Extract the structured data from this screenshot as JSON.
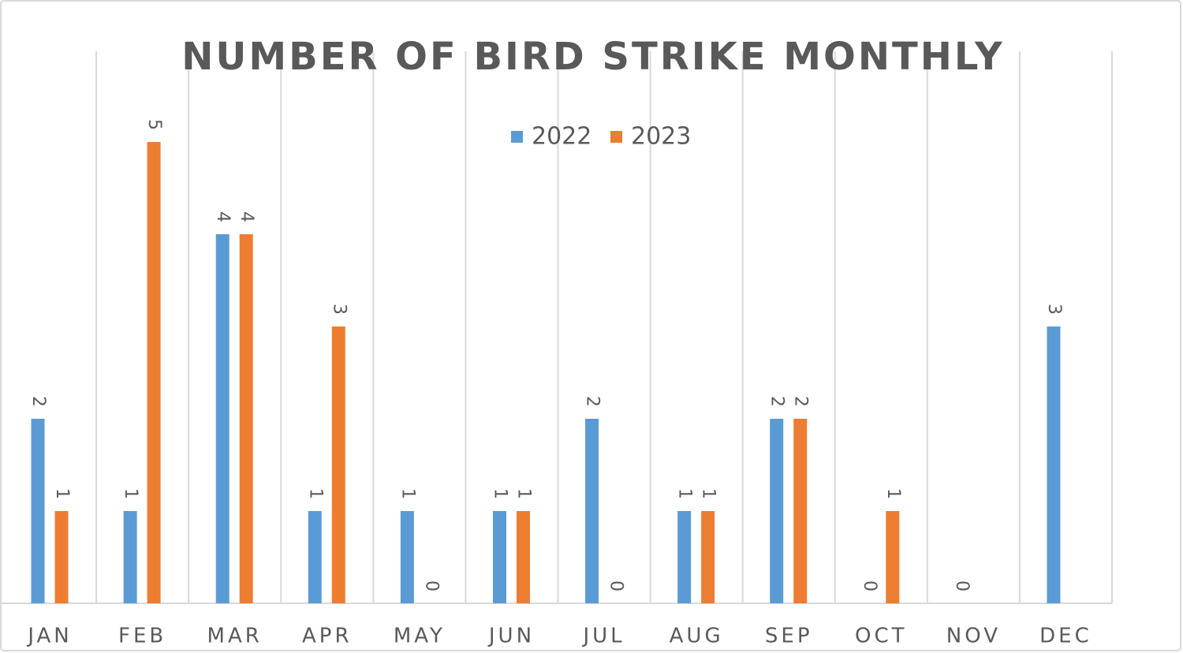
{
  "chart_data": {
    "type": "bar",
    "title": "NUMBER OF BIRD STRIKE MONTHLY",
    "categories": [
      "JAN",
      "FEB",
      "MAR",
      "APR",
      "MAY",
      "JUN",
      "JUL",
      "AUG",
      "SEP",
      "OCT",
      "NOV",
      "DEC"
    ],
    "series": [
      {
        "name": "2022",
        "color": "#5b9bd5",
        "values": [
          2,
          1,
          4,
          1,
          1,
          1,
          2,
          1,
          2,
          0,
          0,
          3
        ]
      },
      {
        "name": "2023",
        "color": "#ed7d31",
        "values": [
          1,
          5,
          4,
          3,
          0,
          1,
          0,
          1,
          2,
          1,
          null,
          null
        ]
      }
    ],
    "ylim": [
      0,
      6
    ],
    "legend": "top"
  }
}
